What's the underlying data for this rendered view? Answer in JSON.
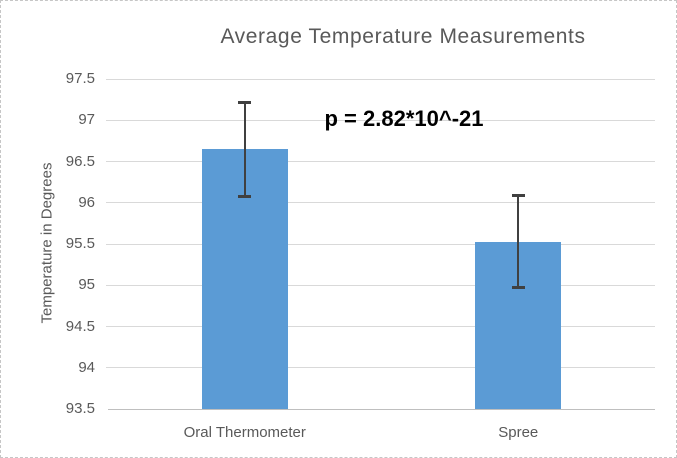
{
  "chart_data": {
    "type": "bar",
    "title": "Average Temperature Measurements",
    "categories": [
      "Oral Thermometer",
      "Spree"
    ],
    "values": [
      96.65,
      95.52
    ],
    "error_bars": [
      {
        "high": 97.22,
        "low": 96.08
      },
      {
        "high": 96.09,
        "low": 94.97
      }
    ],
    "annotation": "p = 2.82*10^-21",
    "xlabel": "",
    "ylabel": "Temperature in Degrees",
    "ylim": [
      93.5,
      97.5
    ],
    "yticks": [
      93.5,
      94,
      94.5,
      95,
      95.5,
      96,
      96.5,
      97,
      97.5
    ],
    "grid": true,
    "legend": false,
    "bar_color": "#5B9BD5",
    "error_bar_color": "#404040",
    "gridline_color": "#D9D9D9",
    "axis_line_color": "#BFBFBF",
    "text_color": "#595959",
    "annotation_color": "#000000"
  }
}
